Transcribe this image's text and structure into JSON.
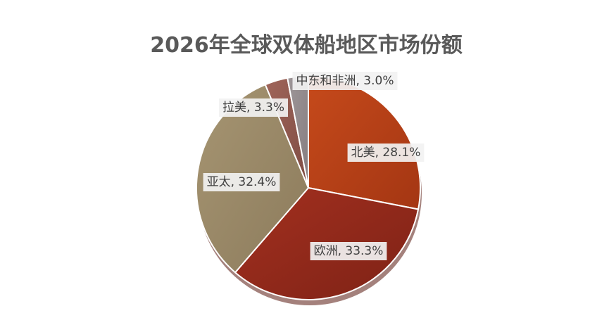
{
  "chart_data": {
    "type": "pie",
    "title": "2026年全球双体船地区市场份额",
    "slices": [
      {
        "label": "北美",
        "value": 28.1,
        "display": "北美, 28.1%",
        "color": "#C64A1B",
        "color_dark": "#A43613"
      },
      {
        "label": "欧洲",
        "value": 33.3,
        "display": "欧洲, 33.3%",
        "color": "#A3301F",
        "color_dark": "#7E2216"
      },
      {
        "label": "亚太",
        "value": 32.4,
        "display": "亚太, 32.4%",
        "color": "#A69572",
        "color_dark": "#8C7B5C"
      },
      {
        "label": "拉美",
        "value": 3.3,
        "display": "拉美, 3.3%",
        "color": "#A0655A",
        "color_dark": "#7E4C43"
      },
      {
        "label": "中东和非洲",
        "value": 3.0,
        "display": "中东和非洲, 3.0%",
        "color": "#9E9698",
        "color_dark": "#857D80"
      }
    ],
    "start_angle_deg": 0,
    "direction": "clockwise",
    "data_labels": true,
    "legend": "none"
  }
}
